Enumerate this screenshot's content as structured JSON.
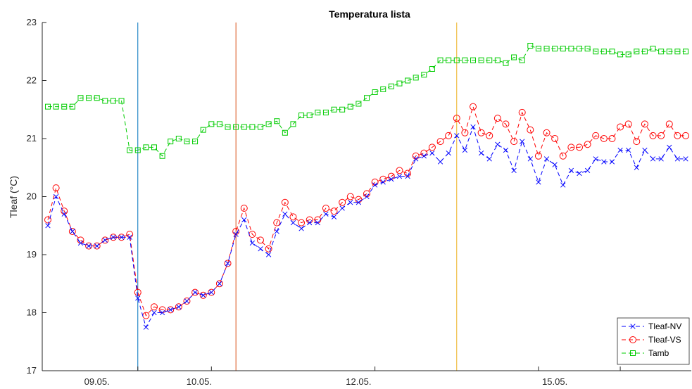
{
  "chart_data": {
    "type": "line",
    "title": "Temperatura lista",
    "xlabel": "",
    "ylabel": "Tleaf (°C)",
    "ylim": [
      17,
      23
    ],
    "yticks": [
      17,
      18,
      19,
      20,
      21,
      22,
      23
    ],
    "x_tick_labels": [
      "09.05.",
      "10.05.",
      "12.05.",
      "15.05."
    ],
    "grid": false,
    "legend_position": "bottom-right",
    "vertical_lines": [
      {
        "x": 11,
        "color": "#0072BD"
      },
      {
        "x": 23,
        "color": "#D95319"
      },
      {
        "x": 50,
        "color": "#EDB120"
      }
    ],
    "series": [
      {
        "name": "Tleaf-NV",
        "color": "#0000ff",
        "marker": "x",
        "values": [
          19.5,
          20.0,
          19.7,
          19.4,
          19.2,
          19.15,
          19.15,
          19.25,
          19.3,
          19.3,
          19.3,
          18.25,
          17.75,
          18.0,
          18.0,
          18.05,
          18.1,
          18.2,
          18.35,
          18.3,
          18.35,
          18.5,
          18.85,
          19.35,
          19.6,
          19.2,
          19.1,
          19.0,
          19.4,
          19.7,
          19.55,
          19.45,
          19.55,
          19.55,
          19.7,
          19.65,
          19.8,
          19.9,
          19.9,
          20.0,
          20.2,
          20.25,
          20.3,
          20.35,
          20.35,
          20.65,
          20.7,
          20.75,
          20.6,
          20.75,
          21.05,
          20.8,
          21.2,
          20.75,
          20.65,
          20.9,
          20.8,
          20.45,
          20.95,
          20.65,
          20.25,
          20.65,
          20.55,
          20.2,
          20.45,
          20.4,
          20.45,
          20.65,
          20.6,
          20.6,
          20.8,
          20.8,
          20.5,
          20.8,
          20.65,
          20.65,
          20.85,
          20.65,
          20.65
        ]
      },
      {
        "name": "Tleaf-VS",
        "color": "#ff0000",
        "marker": "o",
        "values": [
          19.6,
          20.15,
          19.75,
          19.4,
          19.25,
          19.15,
          19.15,
          19.25,
          19.3,
          19.3,
          19.35,
          18.35,
          17.95,
          18.1,
          18.05,
          18.05,
          18.1,
          18.2,
          18.35,
          18.3,
          18.35,
          18.5,
          18.85,
          19.4,
          19.8,
          19.35,
          19.25,
          19.1,
          19.55,
          19.9,
          19.65,
          19.55,
          19.6,
          19.6,
          19.8,
          19.75,
          19.9,
          20.0,
          19.95,
          20.05,
          20.25,
          20.3,
          20.35,
          20.45,
          20.4,
          20.7,
          20.75,
          20.85,
          20.95,
          21.05,
          21.35,
          21.1,
          21.55,
          21.1,
          21.05,
          21.35,
          21.25,
          20.95,
          21.45,
          21.15,
          20.7,
          21.1,
          21.0,
          20.7,
          20.85,
          20.85,
          20.9,
          21.05,
          21.0,
          21.0,
          21.2,
          21.25,
          20.95,
          21.25,
          21.05,
          21.05,
          21.25,
          21.05,
          21.05
        ]
      },
      {
        "name": "Tamb",
        "color": "#00cc00",
        "marker": "s",
        "values": [
          21.55,
          21.55,
          21.55,
          21.55,
          21.7,
          21.7,
          21.7,
          21.65,
          21.65,
          21.65,
          20.8,
          20.8,
          20.85,
          20.85,
          20.7,
          20.95,
          21.0,
          20.95,
          20.95,
          21.15,
          21.25,
          21.25,
          21.2,
          21.2,
          21.2,
          21.2,
          21.2,
          21.25,
          21.3,
          21.1,
          21.25,
          21.4,
          21.4,
          21.45,
          21.45,
          21.5,
          21.5,
          21.55,
          21.6,
          21.7,
          21.8,
          21.85,
          21.9,
          21.95,
          22.0,
          22.05,
          22.1,
          22.2,
          22.35,
          22.35,
          22.35,
          22.35,
          22.35,
          22.35,
          22.35,
          22.35,
          22.3,
          22.4,
          22.35,
          22.6,
          22.55,
          22.55,
          22.55,
          22.55,
          22.55,
          22.55,
          22.55,
          22.5,
          22.5,
          22.5,
          22.45,
          22.45,
          22.5,
          22.5,
          22.55,
          22.5,
          22.5,
          22.5,
          22.5
        ]
      }
    ]
  }
}
